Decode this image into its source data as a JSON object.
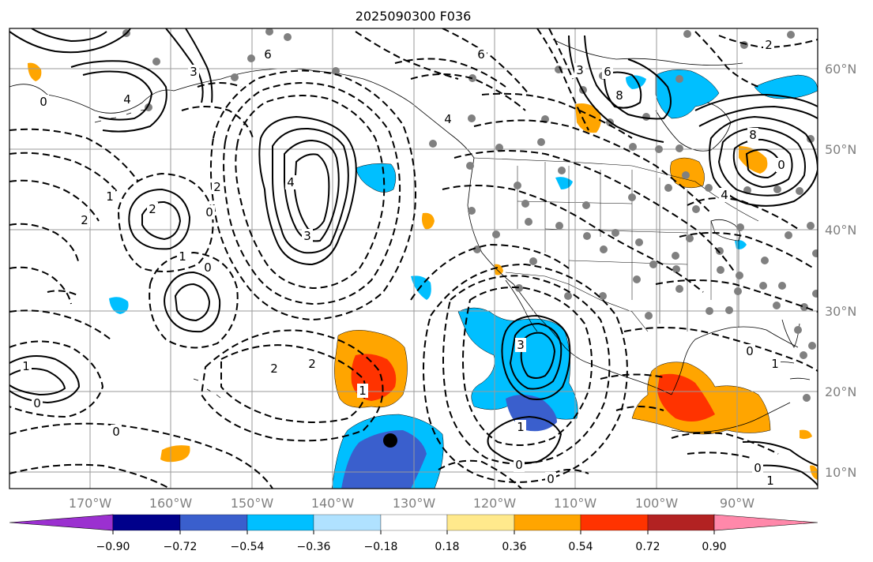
{
  "title": "2025090300 F036",
  "longitude_labels": [
    "170°W",
    "160°W",
    "150°W",
    "140°W",
    "130°W",
    "120°W",
    "110°W",
    "100°W",
    "90°W"
  ],
  "latitude_labels": [
    "60°N",
    "50°N",
    "40°N",
    "30°N",
    "20°N",
    "10°N"
  ],
  "colorbar": {
    "tick_labels": [
      "−0.90",
      "−0.72",
      "−0.54",
      "−0.36",
      "−0.18",
      "0.18",
      "0.36",
      "0.54",
      "0.72",
      "0.90"
    ],
    "colors": [
      "#9b30d0",
      "#00008b",
      "#3a5fcd",
      "#00bfff",
      "#b0e2ff",
      "#ffffff",
      "#ffe98c",
      "#ffa500",
      "#ff3300",
      "#b22222",
      "#ff88aa"
    ]
  },
  "contour_labels": [
    {
      "text": "0",
      "id": "c1"
    },
    {
      "text": "4",
      "id": "c2"
    },
    {
      "text": "3",
      "id": "c3"
    },
    {
      "text": "6",
      "id": "c4"
    },
    {
      "text": "4",
      "id": "c5"
    },
    {
      "text": "2",
      "id": "c6"
    },
    {
      "text": "3",
      "id": "c7"
    },
    {
      "text": "2",
      "id": "c8"
    },
    {
      "text": "1",
      "id": "c9"
    },
    {
      "text": "0",
      "id": "c10"
    },
    {
      "text": "2",
      "id": "c11"
    },
    {
      "text": "1",
      "id": "c12"
    },
    {
      "text": "0",
      "id": "c13"
    },
    {
      "text": "1",
      "id": "c14"
    },
    {
      "text": "0",
      "id": "c15"
    },
    {
      "text": "0",
      "id": "c16"
    },
    {
      "text": "2",
      "id": "c17"
    },
    {
      "text": "2",
      "id": "c18"
    },
    {
      "text": "1",
      "id": "c19"
    },
    {
      "text": "3",
      "id": "c20"
    },
    {
      "text": "1",
      "id": "c21"
    },
    {
      "text": "0",
      "id": "c22"
    },
    {
      "text": "0",
      "id": "c23"
    },
    {
      "text": "8",
      "id": "c24"
    },
    {
      "text": "3",
      "id": "c25"
    },
    {
      "text": "6",
      "id": "c26"
    },
    {
      "text": "8",
      "id": "c27"
    },
    {
      "text": "0",
      "id": "c28"
    },
    {
      "text": "4",
      "id": "c29"
    },
    {
      "text": "0",
      "id": "c30"
    },
    {
      "text": "1",
      "id": "c31"
    },
    {
      "text": "0",
      "id": "c32"
    },
    {
      "text": "1",
      "id": "c33"
    },
    {
      "text": "4",
      "id": "c34"
    },
    {
      "text": "2",
      "id": "c35"
    },
    {
      "text": "6",
      "id": "c36"
    }
  ]
}
